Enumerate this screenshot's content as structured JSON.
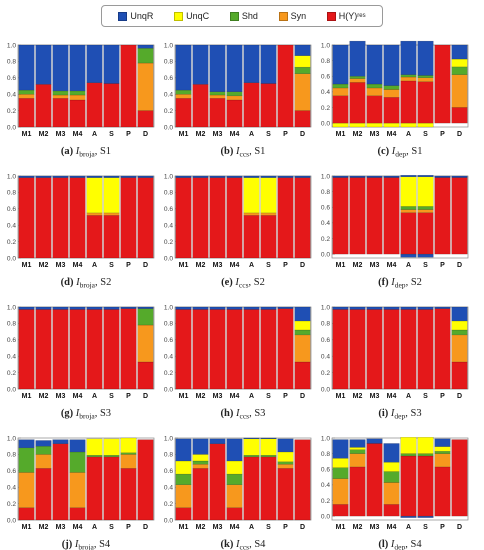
{
  "legend": {
    "items": [
      {
        "label": "UnqR",
        "color": "#1f4fb4"
      },
      {
        "label": "UnqC",
        "color": "#ffff00"
      },
      {
        "label": "Shd",
        "color": "#55aa2b"
      },
      {
        "label": "Syn",
        "color": "#f7981d"
      },
      {
        "label": "H(Y)",
        "sub": "res",
        "color": "#e4181a"
      }
    ]
  },
  "chart_data": [
    {
      "type": "bar",
      "stacked": true,
      "caption": {
        "letter": "(a)",
        "measure": "I",
        "sub": "broja",
        "scenario": ", S1"
      },
      "categories": [
        "M1",
        "M2",
        "M3",
        "M4",
        "A",
        "S",
        "P",
        "D"
      ],
      "ylim": [
        0,
        1
      ],
      "yticks": [
        0.0,
        0.2,
        0.4,
        0.6,
        0.8,
        1.0
      ],
      "grid": false,
      "series": [
        {
          "name": "H(Y)res",
          "values": [
            0.35,
            0.52,
            0.35,
            0.33,
            0.54,
            0.53,
            1.0,
            0.2
          ]
        },
        {
          "name": "Syn",
          "values": [
            0.05,
            0,
            0.04,
            0.06,
            0,
            0,
            0,
            0.58
          ]
        },
        {
          "name": "Shd",
          "values": [
            0.05,
            0,
            0.05,
            0.05,
            0,
            0,
            0,
            0.18
          ]
        },
        {
          "name": "UnqC",
          "values": [
            0,
            0,
            0,
            0,
            0,
            0,
            0,
            0
          ]
        },
        {
          "name": "UnqR",
          "values": [
            0.55,
            0.48,
            0.56,
            0.56,
            0.46,
            0.47,
            0,
            0.04
          ]
        }
      ]
    },
    {
      "type": "bar",
      "stacked": true,
      "caption": {
        "letter": "(b)",
        "measure": "I",
        "sub": "ccs",
        "scenario": ", S1"
      },
      "categories": [
        "M1",
        "M2",
        "M3",
        "M4",
        "A",
        "S",
        "P",
        "D"
      ],
      "ylim": [
        0,
        1
      ],
      "yticks": [
        0.0,
        0.2,
        0.4,
        0.6,
        0.8,
        1.0
      ],
      "grid": false,
      "series": [
        {
          "name": "H(Y)res",
          "values": [
            0.35,
            0.52,
            0.35,
            0.33,
            0.54,
            0.53,
            1.0,
            0.2
          ]
        },
        {
          "name": "Syn",
          "values": [
            0.05,
            0,
            0.04,
            0.05,
            0,
            0,
            0,
            0.45
          ]
        },
        {
          "name": "Shd",
          "values": [
            0.05,
            0,
            0.04,
            0.05,
            0,
            0,
            0,
            0.08
          ]
        },
        {
          "name": "UnqC",
          "values": [
            0,
            0,
            0,
            0,
            0,
            0,
            0,
            0.14
          ]
        },
        {
          "name": "UnqR",
          "values": [
            0.55,
            0.48,
            0.57,
            0.57,
            0.46,
            0.47,
            0,
            0.13
          ]
        }
      ]
    },
    {
      "type": "bar",
      "stacked": true,
      "caption": {
        "letter": "(c)",
        "measure": "I",
        "sub": "dep",
        "scenario": ", S1"
      },
      "categories": [
        "M1",
        "M2",
        "M3",
        "M4",
        "A",
        "S",
        "P",
        "D"
      ],
      "ylim": [
        -0.05,
        1
      ],
      "yticks": [
        0.0,
        0.2,
        0.4,
        0.6,
        0.8,
        1.0
      ],
      "grid": false,
      "series": [
        {
          "name": "UnqC",
          "values": [
            -0.05,
            -0.05,
            -0.05,
            -0.05,
            -0.05,
            -0.05,
            0,
            0
          ]
        },
        {
          "name": "H(Y)res",
          "values": [
            0.35,
            0.52,
            0.35,
            0.33,
            0.54,
            0.53,
            1.0,
            0.2
          ]
        },
        {
          "name": "Syn",
          "values": [
            0.1,
            0.05,
            0.1,
            0.1,
            0.05,
            0.05,
            0,
            0.42
          ]
        },
        {
          "name": "Shd",
          "values": [
            0.05,
            0.03,
            0.05,
            0.05,
            0.03,
            0.03,
            0,
            0.1
          ]
        },
        {
          "name": "UnqC",
          "values": [
            0,
            0,
            0,
            0,
            0,
            0,
            0,
            0.1
          ]
        },
        {
          "name": "UnqR",
          "values": [
            0.5,
            0.45,
            0.5,
            0.52,
            0.43,
            0.44,
            0,
            0.18
          ]
        }
      ]
    },
    {
      "type": "bar",
      "stacked": true,
      "caption": {
        "letter": "(d)",
        "measure": "I",
        "sub": "broja",
        "scenario": ", S2"
      },
      "categories": [
        "M1",
        "M2",
        "M3",
        "M4",
        "A",
        "S",
        "P",
        "D"
      ],
      "ylim": [
        0,
        1
      ],
      "yticks": [
        0.0,
        0.2,
        0.4,
        0.6,
        0.8,
        1.0
      ],
      "grid": false,
      "series": [
        {
          "name": "H(Y)res",
          "values": [
            0.98,
            0.98,
            0.98,
            0.98,
            0.52,
            0.52,
            0.98,
            0.98
          ]
        },
        {
          "name": "Syn",
          "values": [
            0,
            0,
            0,
            0,
            0.03,
            0.03,
            0,
            0
          ]
        },
        {
          "name": "UnqC",
          "values": [
            0,
            0,
            0,
            0,
            0.43,
            0.43,
            0,
            0
          ]
        },
        {
          "name": "UnqR",
          "values": [
            0.02,
            0.02,
            0.02,
            0.02,
            0.02,
            0.02,
            0.02,
            0.02
          ]
        }
      ]
    },
    {
      "type": "bar",
      "stacked": true,
      "caption": {
        "letter": "(e)",
        "measure": "I",
        "sub": "ccs",
        "scenario": ", S2"
      },
      "categories": [
        "M1",
        "M2",
        "M3",
        "M4",
        "A",
        "S",
        "P",
        "D"
      ],
      "ylim": [
        0,
        1
      ],
      "yticks": [
        0.0,
        0.2,
        0.4,
        0.6,
        0.8,
        1.0
      ],
      "grid": false,
      "series": [
        {
          "name": "H(Y)res",
          "values": [
            0.98,
            0.98,
            0.98,
            0.98,
            0.52,
            0.52,
            0.98,
            0.98
          ]
        },
        {
          "name": "Syn",
          "values": [
            0,
            0,
            0,
            0,
            0.03,
            0.03,
            0,
            0
          ]
        },
        {
          "name": "UnqC",
          "values": [
            0,
            0,
            0,
            0,
            0.43,
            0.43,
            0,
            0
          ]
        },
        {
          "name": "UnqR",
          "values": [
            0.02,
            0.02,
            0.02,
            0.02,
            0.02,
            0.02,
            0.02,
            0.02
          ]
        }
      ]
    },
    {
      "type": "bar",
      "stacked": true,
      "caption": {
        "letter": "(f)",
        "measure": "I",
        "sub": "dep",
        "scenario": ", S2"
      },
      "categories": [
        "M1",
        "M2",
        "M3",
        "M4",
        "A",
        "S",
        "P",
        "D"
      ],
      "ylim": [
        -0.05,
        1
      ],
      "yticks": [
        0.0,
        0.2,
        0.4,
        0.6,
        0.8,
        1.0
      ],
      "grid": false,
      "series": [
        {
          "name": "UnqR",
          "values": [
            0,
            0,
            0,
            0,
            -0.04,
            -0.04,
            0,
            0
          ]
        },
        {
          "name": "H(Y)res",
          "values": [
            0.98,
            0.98,
            0.98,
            0.98,
            0.53,
            0.53,
            0.98,
            0.98
          ]
        },
        {
          "name": "Syn",
          "values": [
            0,
            0,
            0,
            0,
            0.04,
            0.04,
            0,
            0
          ]
        },
        {
          "name": "Shd",
          "values": [
            0,
            0,
            0,
            0,
            0.04,
            0.04,
            0,
            0
          ]
        },
        {
          "name": "UnqC",
          "values": [
            0,
            0,
            0,
            0,
            0.38,
            0.38,
            0,
            0
          ]
        },
        {
          "name": "UnqR",
          "values": [
            0.02,
            0.02,
            0.02,
            0.02,
            0.02,
            0.02,
            0.02,
            0.02
          ]
        }
      ]
    },
    {
      "type": "bar",
      "stacked": true,
      "caption": {
        "letter": "(g)",
        "measure": "I",
        "sub": "broja",
        "scenario": ", S3"
      },
      "categories": [
        "M1",
        "M2",
        "M3",
        "M4",
        "A",
        "S",
        "P",
        "D"
      ],
      "ylim": [
        0,
        1
      ],
      "yticks": [
        0.0,
        0.2,
        0.4,
        0.6,
        0.8,
        1.0
      ],
      "grid": false,
      "series": [
        {
          "name": "H(Y)res",
          "values": [
            0.97,
            0.97,
            0.97,
            0.97,
            0.97,
            0.97,
            0.98,
            0.33
          ]
        },
        {
          "name": "Syn",
          "values": [
            0,
            0,
            0,
            0,
            0,
            0,
            0,
            0.45
          ]
        },
        {
          "name": "Shd",
          "values": [
            0,
            0,
            0,
            0,
            0,
            0,
            0,
            0.2
          ]
        },
        {
          "name": "UnqR",
          "values": [
            0.03,
            0.03,
            0.03,
            0.03,
            0.03,
            0.03,
            0.02,
            0.02
          ]
        }
      ]
    },
    {
      "type": "bar",
      "stacked": true,
      "caption": {
        "letter": "(h)",
        "measure": "I",
        "sub": "ccs",
        "scenario": ", S3"
      },
      "categories": [
        "M1",
        "M2",
        "M3",
        "M4",
        "A",
        "S",
        "P",
        "D"
      ],
      "ylim": [
        0,
        1
      ],
      "yticks": [
        0.0,
        0.2,
        0.4,
        0.6,
        0.8,
        1.0
      ],
      "grid": false,
      "series": [
        {
          "name": "H(Y)res",
          "values": [
            0.97,
            0.97,
            0.97,
            0.97,
            0.97,
            0.97,
            0.98,
            0.33
          ]
        },
        {
          "name": "Syn",
          "values": [
            0,
            0,
            0,
            0,
            0,
            0,
            0,
            0.33
          ]
        },
        {
          "name": "Shd",
          "values": [
            0,
            0,
            0,
            0,
            0,
            0,
            0,
            0.06
          ]
        },
        {
          "name": "UnqC",
          "values": [
            0,
            0,
            0,
            0,
            0,
            0,
            0,
            0.11
          ]
        },
        {
          "name": "UnqR",
          "values": [
            0.03,
            0.03,
            0.03,
            0.03,
            0.03,
            0.03,
            0.02,
            0.17
          ]
        }
      ]
    },
    {
      "type": "bar",
      "stacked": true,
      "caption": {
        "letter": "(i)",
        "measure": "I",
        "sub": "dep",
        "scenario": ", S3"
      },
      "categories": [
        "M1",
        "M2",
        "M3",
        "M4",
        "A",
        "S",
        "P",
        "D"
      ],
      "ylim": [
        0,
        1
      ],
      "yticks": [
        0.0,
        0.2,
        0.4,
        0.6,
        0.8,
        1.0
      ],
      "grid": false,
      "series": [
        {
          "name": "H(Y)res",
          "values": [
            0.97,
            0.97,
            0.97,
            0.97,
            0.97,
            0.97,
            0.98,
            0.33
          ]
        },
        {
          "name": "Syn",
          "values": [
            0,
            0,
            0,
            0,
            0,
            0,
            0,
            0.33
          ]
        },
        {
          "name": "Shd",
          "values": [
            0,
            0,
            0,
            0,
            0,
            0,
            0,
            0.06
          ]
        },
        {
          "name": "UnqC",
          "values": [
            0,
            0,
            0,
            0,
            0,
            0,
            0,
            0.11
          ]
        },
        {
          "name": "UnqR",
          "values": [
            0.03,
            0.03,
            0.03,
            0.03,
            0.03,
            0.03,
            0.02,
            0.17
          ]
        }
      ]
    },
    {
      "type": "bar",
      "stacked": true,
      "caption": {
        "letter": "(j)",
        "measure": "I",
        "sub": "broja",
        "scenario": ", S4"
      },
      "categories": [
        "M1",
        "M2",
        "M3",
        "M4",
        "A",
        "S",
        "P",
        "D"
      ],
      "ylim": [
        0,
        1
      ],
      "yticks": [
        0.0,
        0.2,
        0.4,
        0.6,
        0.8,
        1.0
      ],
      "grid": false,
      "series": [
        {
          "name": "H(Y)res",
          "values": [
            0.15,
            0.63,
            0.93,
            0.15,
            0.77,
            0.77,
            0.63,
            0.98
          ]
        },
        {
          "name": "Syn",
          "values": [
            0.43,
            0.17,
            0,
            0.43,
            0,
            0,
            0.17,
            0
          ]
        },
        {
          "name": "Shd",
          "values": [
            0.3,
            0.1,
            0,
            0.25,
            0.02,
            0.02,
            0.02,
            0
          ]
        },
        {
          "name": "UnqC",
          "values": [
            0,
            0,
            0,
            0,
            0.2,
            0.2,
            0.18,
            0
          ]
        },
        {
          "name": "UnqR",
          "values": [
            0.1,
            0.07,
            0.05,
            0.15,
            0,
            0,
            0,
            0
          ]
        }
      ]
    },
    {
      "type": "bar",
      "stacked": true,
      "caption": {
        "letter": "(k)",
        "measure": "I",
        "sub": "ccs",
        "scenario": ", S4"
      },
      "categories": [
        "M1",
        "M2",
        "M3",
        "M4",
        "A",
        "S",
        "P",
        "D"
      ],
      "ylim": [
        0,
        1
      ],
      "yticks": [
        0.0,
        0.2,
        0.4,
        0.6,
        0.8,
        1.0
      ],
      "grid": false,
      "series": [
        {
          "name": "H(Y)res",
          "values": [
            0.15,
            0.63,
            0.93,
            0.15,
            0.77,
            0.77,
            0.63,
            0.98
          ]
        },
        {
          "name": "Syn",
          "values": [
            0.28,
            0.05,
            0,
            0.28,
            0,
            0,
            0.05,
            0
          ]
        },
        {
          "name": "Shd",
          "values": [
            0.13,
            0.04,
            0,
            0.13,
            0.02,
            0.02,
            0.03,
            0
          ]
        },
        {
          "name": "UnqC",
          "values": [
            0.16,
            0.08,
            0,
            0.16,
            0.2,
            0.2,
            0.12,
            0
          ]
        },
        {
          "name": "UnqR",
          "values": [
            0.27,
            0.19,
            0.06,
            0.27,
            0.01,
            0.01,
            0.16,
            0
          ]
        }
      ]
    },
    {
      "type": "bar",
      "stacked": true,
      "caption": {
        "letter": "(l)",
        "measure": "I",
        "sub": "dep",
        "scenario": ", S4"
      },
      "categories": [
        "M1",
        "M2",
        "M3",
        "M4",
        "A",
        "S",
        "P",
        "D"
      ],
      "ylim": [
        -0.05,
        1
      ],
      "yticks": [
        0.0,
        0.2,
        0.4,
        0.6,
        0.8,
        1.0
      ],
      "grid": false,
      "series": [
        {
          "name": "UnqR",
          "values": [
            0,
            0,
            0,
            0,
            -0.02,
            -0.02,
            0,
            0
          ]
        },
        {
          "name": "H(Y)res",
          "values": [
            0.15,
            0.63,
            0.93,
            0.15,
            0.77,
            0.77,
            0.63,
            0.98
          ]
        },
        {
          "name": "Syn",
          "values": [
            0.33,
            0.17,
            0,
            0.28,
            0,
            0,
            0.17,
            0
          ]
        },
        {
          "name": "Shd",
          "values": [
            0.14,
            0.05,
            0,
            0.14,
            0.03,
            0.03,
            0.03,
            0
          ]
        },
        {
          "name": "UnqC",
          "values": [
            0.12,
            0.03,
            0,
            0.12,
            0.21,
            0.21,
            0.06,
            0
          ]
        },
        {
          "name": "UnqR",
          "values": [
            0.24,
            0.1,
            0.06,
            0.24,
            0,
            0,
            0.1,
            0
          ]
        }
      ]
    }
  ]
}
